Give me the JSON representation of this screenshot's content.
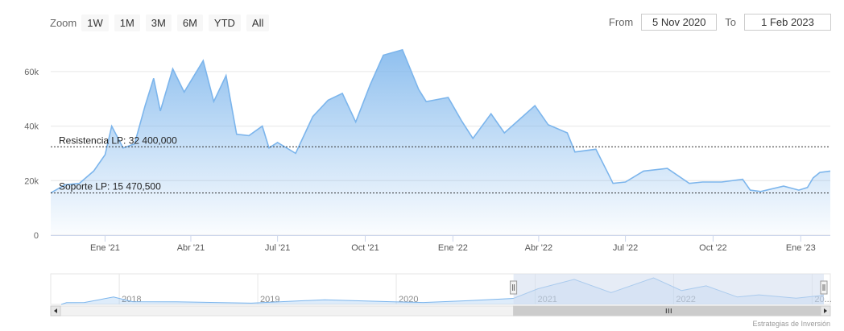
{
  "toolbar": {
    "zoom_label": "Zoom",
    "buttons": [
      "1W",
      "1M",
      "3M",
      "6M",
      "YTD",
      "All"
    ]
  },
  "range": {
    "from_label": "From",
    "from_value": "5 Nov 2020",
    "to_label": "To",
    "to_value": "1 Feb 2023"
  },
  "credit": "Estrategias de Inversión",
  "colors": {
    "line": "#7cb5ec",
    "fill_top": "#7cb5ec",
    "band": "#d2dcee",
    "dash": "#333333"
  },
  "chart_data": {
    "type": "area",
    "ylim": [
      0,
      70000
    ],
    "yticks": [
      0,
      20000,
      40000,
      60000
    ],
    "ytick_labels": [
      "0",
      "20k",
      "40k",
      "60k"
    ],
    "xlim": [
      "2020-11-05",
      "2023-02-01"
    ],
    "xticks": [
      {
        "date": "2021-01-01",
        "label": "Ene '21"
      },
      {
        "date": "2021-04-01",
        "label": "Abr '21"
      },
      {
        "date": "2021-07-01",
        "label": "Jul '21"
      },
      {
        "date": "2021-10-01",
        "label": "Oct '21"
      },
      {
        "date": "2022-01-01",
        "label": "Ene '22"
      },
      {
        "date": "2022-04-01",
        "label": "Abr '22"
      },
      {
        "date": "2022-07-01",
        "label": "Jul '22"
      },
      {
        "date": "2022-10-01",
        "label": "Oct '22"
      },
      {
        "date": "2023-01-01",
        "label": "Ene '23"
      }
    ],
    "grid": true,
    "series": [
      {
        "points": [
          [
            "2020-11-05",
            15500
          ],
          [
            "2020-11-20",
            18500
          ],
          [
            "2020-12-05",
            19000
          ],
          [
            "2020-12-20",
            23500
          ],
          [
            "2021-01-01",
            29500
          ],
          [
            "2021-01-08",
            40000
          ],
          [
            "2021-01-20",
            32000
          ],
          [
            "2021-02-01",
            33500
          ],
          [
            "2021-02-12",
            47500
          ],
          [
            "2021-02-21",
            57500
          ],
          [
            "2021-02-28",
            45500
          ],
          [
            "2021-03-13",
            61000
          ],
          [
            "2021-03-25",
            52500
          ],
          [
            "2021-04-14",
            64000
          ],
          [
            "2021-04-25",
            49000
          ],
          [
            "2021-05-08",
            58500
          ],
          [
            "2021-05-19",
            37000
          ],
          [
            "2021-06-01",
            36500
          ],
          [
            "2021-06-15",
            40000
          ],
          [
            "2021-06-22",
            32000
          ],
          [
            "2021-07-01",
            34000
          ],
          [
            "2021-07-20",
            30000
          ],
          [
            "2021-08-07",
            43500
          ],
          [
            "2021-08-23",
            49500
          ],
          [
            "2021-09-07",
            52000
          ],
          [
            "2021-09-21",
            41500
          ],
          [
            "2021-10-06",
            55000
          ],
          [
            "2021-10-20",
            66000
          ],
          [
            "2021-11-09",
            68000
          ],
          [
            "2021-11-26",
            53500
          ],
          [
            "2021-12-04",
            49000
          ],
          [
            "2021-12-27",
            50500
          ],
          [
            "2022-01-10",
            42000
          ],
          [
            "2022-01-22",
            35500
          ],
          [
            "2022-02-10",
            44500
          ],
          [
            "2022-02-24",
            37500
          ],
          [
            "2022-03-28",
            47500
          ],
          [
            "2022-04-11",
            40500
          ],
          [
            "2022-05-01",
            37500
          ],
          [
            "2022-05-09",
            30500
          ],
          [
            "2022-05-31",
            31500
          ],
          [
            "2022-06-13",
            22500
          ],
          [
            "2022-06-18",
            19000
          ],
          [
            "2022-07-01",
            19500
          ],
          [
            "2022-07-20",
            23500
          ],
          [
            "2022-08-14",
            24500
          ],
          [
            "2022-09-06",
            19000
          ],
          [
            "2022-09-20",
            19500
          ],
          [
            "2022-10-10",
            19500
          ],
          [
            "2022-11-01",
            20500
          ],
          [
            "2022-11-09",
            16500
          ],
          [
            "2022-11-20",
            16000
          ],
          [
            "2022-12-14",
            18000
          ],
          [
            "2022-12-30",
            16500
          ],
          [
            "2023-01-08",
            17500
          ],
          [
            "2023-01-14",
            21000
          ],
          [
            "2023-01-21",
            23000
          ],
          [
            "2023-02-01",
            23500
          ]
        ]
      }
    ],
    "annotations": [
      {
        "label": "Resistencia LP: 32 400,000",
        "value": 32400
      },
      {
        "label": "Soporte LP: 15 470,500",
        "value": 15470.5
      }
    ],
    "navigator": {
      "labels": [
        "2018",
        "2019",
        "2020",
        "2021",
        "2022",
        "20..."
      ],
      "label_dates": [
        "2018-01-01",
        "2019-01-01",
        "2020-01-01",
        "2021-01-01",
        "2022-01-01",
        "2023-01-01"
      ],
      "xlim": [
        "2017-08-01",
        "2023-02-01"
      ],
      "ylim": [
        0,
        70000
      ],
      "selected": [
        "2020-11-05",
        "2023-02-01"
      ],
      "points": [
        [
          "2017-08-01",
          0
        ],
        [
          "2017-08-15",
          4500
        ],
        [
          "2017-10-01",
          5000
        ],
        [
          "2017-12-17",
          19000
        ],
        [
          "2018-02-05",
          7000
        ],
        [
          "2018-06-01",
          6500
        ],
        [
          "2018-12-15",
          3300
        ],
        [
          "2019-06-26",
          12000
        ],
        [
          "2019-12-15",
          7000
        ],
        [
          "2020-03-12",
          5000
        ],
        [
          "2020-07-01",
          9200
        ],
        [
          "2020-11-05",
          15500
        ],
        [
          "2021-01-08",
          40000
        ],
        [
          "2021-04-14",
          64000
        ],
        [
          "2021-07-20",
          30000
        ],
        [
          "2021-11-09",
          68000
        ],
        [
          "2022-01-22",
          35500
        ],
        [
          "2022-03-28",
          47500
        ],
        [
          "2022-06-18",
          19000
        ],
        [
          "2022-08-14",
          24500
        ],
        [
          "2022-11-20",
          16000
        ],
        [
          "2023-02-01",
          23500
        ]
      ]
    }
  }
}
